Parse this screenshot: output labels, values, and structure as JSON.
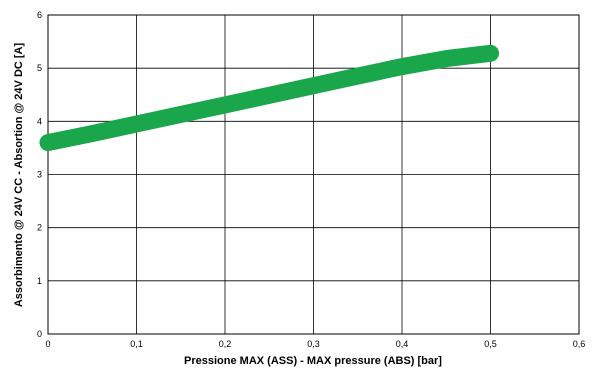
{
  "chart_data": {
    "type": "line",
    "xlabel": "Pressione MAX  (ASS) - MAX pressure (ABS) [bar]",
    "ylabel": "Assorbimento @ 24V CC - Absortion @ 24V DC [A]",
    "xlim": [
      0,
      0.6
    ],
    "ylim": [
      0,
      6
    ],
    "x_ticks": [
      "0",
      "0,1",
      "0,2",
      "0,3",
      "0,4",
      "0,5",
      "0,6"
    ],
    "y_ticks": [
      "0",
      "1",
      "2",
      "3",
      "4",
      "5",
      "6"
    ],
    "grid": true,
    "series": [
      {
        "color": "#1aa64a",
        "x": [
          0,
          0.05,
          0.1,
          0.15,
          0.2,
          0.25,
          0.3,
          0.35,
          0.4,
          0.45,
          0.5
        ],
        "y": [
          3.6,
          3.77,
          3.95,
          4.13,
          4.31,
          4.49,
          4.67,
          4.85,
          5.03,
          5.18,
          5.28
        ]
      }
    ]
  }
}
